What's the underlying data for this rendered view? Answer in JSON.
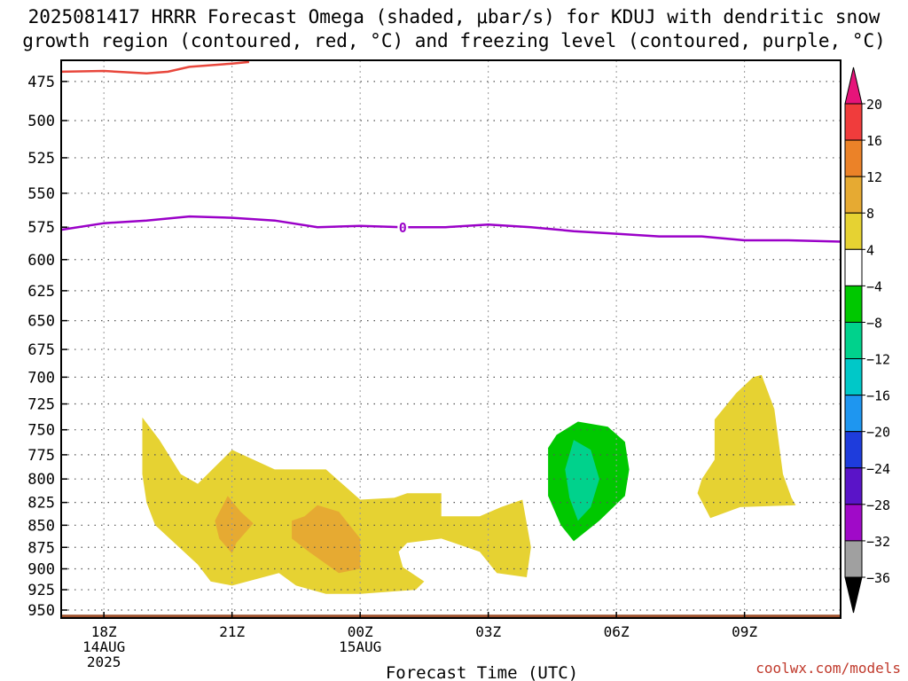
{
  "title_line1": "2025081417 HRRR Forecast Omega (shaded, μbar/s) for KDUJ with dendritic snow",
  "title_line2": "growth region (contoured, red, °C) and freezing level (contoured, purple, °C)",
  "credit": "coolwx.com/models",
  "chart_data": {
    "type": "contour",
    "xlabel": "Forecast Time (UTC)",
    "x_unit": "forecast hours",
    "xlim": [
      -1,
      17.25
    ],
    "x_ticks": [
      {
        "x": 0,
        "label": [
          "18Z",
          "14AUG",
          "2025"
        ]
      },
      {
        "x": 3,
        "label": [
          "21Z"
        ]
      },
      {
        "x": 6,
        "label": [
          "00Z",
          "15AUG"
        ]
      },
      {
        "x": 9,
        "label": [
          "03Z"
        ]
      },
      {
        "x": 12,
        "label": [
          "06Z"
        ]
      },
      {
        "x": 15,
        "label": [
          "09Z"
        ]
      }
    ],
    "y_unit": "hPa",
    "ylim": [
      960,
      462
    ],
    "y_ticks": [
      475,
      500,
      525,
      550,
      575,
      600,
      625,
      650,
      675,
      700,
      725,
      750,
      775,
      800,
      825,
      850,
      875,
      900,
      925,
      950
    ],
    "grid": true,
    "colorbar": {
      "labels": [
        "20",
        "16",
        "12",
        "8",
        "4",
        "−4",
        "−8",
        "−12",
        "−16",
        "−20",
        "−24",
        "−28",
        "−32",
        "−36"
      ],
      "bands": [
        {
          "from": 16,
          "to": 20,
          "color": "#f03c3c"
        },
        {
          "from": 12,
          "to": 16,
          "color": "#eb8228"
        },
        {
          "from": 8,
          "to": 12,
          "color": "#e6aa32"
        },
        {
          "from": 4,
          "to": 8,
          "color": "#e6d232"
        },
        {
          "from": -4,
          "to": 4,
          "color": "#ffffff"
        },
        {
          "from": -8,
          "to": -4,
          "color": "#00c800"
        },
        {
          "from": -12,
          "to": -8,
          "color": "#00d28c"
        },
        {
          "from": -16,
          "to": -12,
          "color": "#00c8c8"
        },
        {
          "from": -20,
          "to": -16,
          "color": "#1e96f0"
        },
        {
          "from": -24,
          "to": -20,
          "color": "#1e3cdc"
        },
        {
          "from": -28,
          "to": -24,
          "color": "#5a14c8"
        },
        {
          "from": -32,
          "to": -28,
          "color": "#a00ac8"
        },
        {
          "from": -36,
          "to": -32,
          "color": "#a0a0a0"
        }
      ],
      "top_arrow_color": "#e6147a",
      "bottom_arrow_color": "#000000"
    },
    "omega_regions": [
      {
        "color": "#e6d232",
        "points": [
          [
            0.9,
            795
          ],
          [
            0.9,
            738
          ],
          [
            1.3,
            760
          ],
          [
            1.8,
            795
          ],
          [
            2.2,
            805
          ],
          [
            3.0,
            770
          ],
          [
            4.0,
            790
          ],
          [
            5.2,
            790
          ],
          [
            6.0,
            822
          ],
          [
            6.8,
            820
          ],
          [
            7.1,
            815
          ],
          [
            7.9,
            815
          ],
          [
            7.9,
            840
          ],
          [
            8.8,
            840
          ],
          [
            9.3,
            830
          ],
          [
            9.8,
            822
          ],
          [
            10.0,
            875
          ],
          [
            9.9,
            910
          ],
          [
            9.2,
            905
          ],
          [
            8.8,
            880
          ],
          [
            7.9,
            865
          ],
          [
            7.1,
            870
          ],
          [
            6.9,
            880
          ],
          [
            7.0,
            898
          ],
          [
            7.5,
            915
          ],
          [
            7.3,
            925
          ],
          [
            6.0,
            930
          ],
          [
            5.2,
            930
          ],
          [
            4.5,
            920
          ],
          [
            4.1,
            905
          ],
          [
            3.0,
            920
          ],
          [
            2.5,
            915
          ],
          [
            2.2,
            895
          ],
          [
            1.2,
            850
          ],
          [
            1.0,
            825
          ]
        ]
      },
      {
        "color": "#e6aa32",
        "points": [
          [
            2.9,
            818
          ],
          [
            3.2,
            835
          ],
          [
            3.5,
            848
          ],
          [
            3.1,
            870
          ],
          [
            3.0,
            882
          ],
          [
            2.7,
            865
          ],
          [
            2.6,
            845
          ]
        ]
      },
      {
        "color": "#e6aa32",
        "points": [
          [
            4.7,
            840
          ],
          [
            5.0,
            828
          ],
          [
            5.5,
            835
          ],
          [
            6.0,
            865
          ],
          [
            6.0,
            900
          ],
          [
            5.5,
            905
          ],
          [
            4.8,
            880
          ],
          [
            4.4,
            865
          ],
          [
            4.4,
            845
          ]
        ]
      },
      {
        "color": "#00c800",
        "points": [
          [
            11.1,
            742
          ],
          [
            11.8,
            747
          ],
          [
            12.2,
            762
          ],
          [
            12.3,
            790
          ],
          [
            12.2,
            818
          ],
          [
            11.6,
            845
          ],
          [
            11.0,
            868
          ],
          [
            10.7,
            850
          ],
          [
            10.4,
            818
          ],
          [
            10.4,
            768
          ],
          [
            10.6,
            755
          ]
        ]
      },
      {
        "color": "#00d28c",
        "points": [
          [
            11.0,
            760
          ],
          [
            11.4,
            770
          ],
          [
            11.6,
            800
          ],
          [
            11.4,
            830
          ],
          [
            11.1,
            845
          ],
          [
            10.9,
            820
          ],
          [
            10.8,
            790
          ]
        ]
      },
      {
        "color": "#e6d232",
        "points": [
          [
            14.8,
            715
          ],
          [
            15.2,
            700
          ],
          [
            15.4,
            698
          ],
          [
            15.7,
            730
          ],
          [
            15.9,
            795
          ],
          [
            16.1,
            820
          ],
          [
            16.2,
            828
          ],
          [
            14.9,
            830
          ],
          [
            14.2,
            842
          ],
          [
            13.9,
            815
          ],
          [
            14.0,
            800
          ],
          [
            14.3,
            780
          ],
          [
            14.3,
            740
          ]
        ]
      }
    ],
    "freezing_level": {
      "label": "0",
      "label_x": 7.0,
      "color": "#9a00c8",
      "x": [
        -1,
        0,
        1,
        2,
        3,
        4,
        5,
        6,
        7,
        8,
        9,
        10,
        11,
        12,
        13,
        14,
        15,
        16,
        17.25
      ],
      "y": [
        577,
        572,
        570,
        567,
        568,
        570,
        575,
        574,
        575,
        575,
        573,
        575,
        578,
        580,
        582,
        582,
        585,
        585,
        586
      ]
    },
    "dgz_line": {
      "color": "#e8473c",
      "x": [
        -1,
        0,
        1,
        1.5,
        2,
        3,
        3.4
      ],
      "y": 469,
      "y_values": [
        469,
        468.5,
        470,
        469,
        466,
        464,
        463
      ]
    },
    "terrain": {
      "color": "#a0522d",
      "y_values": [
        958,
        958
      ]
    }
  }
}
